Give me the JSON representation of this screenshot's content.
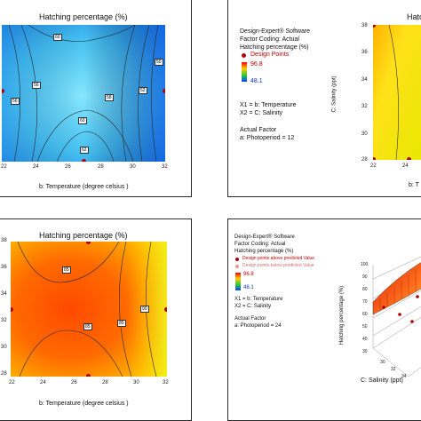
{
  "panel_a": {
    "title": "Hatching percentage (%)",
    "xlabel": "b: Temperature (degree celsius )",
    "xticks": [
      "22",
      "24",
      "26",
      "28",
      "30",
      "32"
    ],
    "yticks": [],
    "contour_labels": [
      "60",
      "56",
      "56",
      "58",
      "60",
      "62",
      "52",
      "50"
    ],
    "colors": {
      "low": "#1a7bd6",
      "high": "#7fe3ff"
    }
  },
  "panel_b": {
    "title_partial": "Hatchi",
    "software": "Design-Expert® Software",
    "coding": "Factor Coding: Actual",
    "response": "Hatching percentage (%)",
    "design_points": "Design Points",
    "max": "96.8",
    "min": "48.1",
    "x1": "X1 = b: Temperature",
    "x2": "X2 = C: Salinity",
    "actual_factor": "Actual Factor",
    "factor_value": "a: Photoperiod = 12",
    "ylabel": "C: Salinity (ppt)",
    "yticks": [
      "38",
      "36",
      "34",
      "32",
      "30",
      "28"
    ],
    "xticks": [
      "22",
      "24"
    ],
    "xlabel_partial": "b: T"
  },
  "panel_c": {
    "title": "Hatching percentage (%)",
    "xlabel": "b: Temperature (degree celsius )",
    "xticks": [
      "22",
      "24",
      "26",
      "28",
      "30",
      "32"
    ],
    "yticks": [
      "38",
      "36",
      "34",
      "32",
      "30",
      "28"
    ],
    "contour_labels": [
      "85",
      "90",
      "85",
      "85"
    ]
  },
  "panel_d": {
    "software": "Design-Expert® Software",
    "coding": "Factor Coding: Actual",
    "response": "Hatching percentage (%)",
    "above": "Design points above predicted Value",
    "below": "Design points below predicted Value",
    "max": "96.8",
    "min": "48.1",
    "x1": "X1 = b: Temperature",
    "x2": "X2 = C: Salinity",
    "actual_factor": "Actual Factor",
    "factor_value": "a: Photoperiod = 24",
    "zlabel": "Hatching percentage (%)",
    "zticks": [
      "100",
      "90",
      "80",
      "70",
      "60",
      "50",
      "40",
      "30"
    ],
    "xlabel": "C: Salinity (ppt)",
    "xticks": [
      "30",
      "32",
      "34"
    ]
  },
  "chart_data": [
    {
      "type": "heatmap",
      "title": "Hatching percentage (%)",
      "xlabel": "b: Temperature (degree celsius )",
      "x": [
        22,
        24,
        26,
        28,
        30,
        32
      ],
      "contours": [
        50,
        52,
        56,
        58,
        60,
        62
      ]
    },
    {
      "type": "heatmap",
      "title": "Hatching percentage (%)",
      "xlabel": "b: Temperature (degree celsius )",
      "x": [
        22,
        24,
        26,
        28,
        30,
        32
      ],
      "y": [
        28,
        30,
        32,
        34,
        36,
        38
      ],
      "contours": [
        85,
        90
      ]
    }
  ]
}
